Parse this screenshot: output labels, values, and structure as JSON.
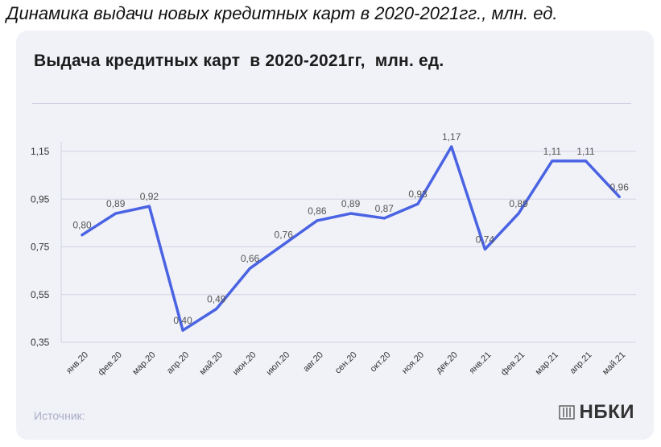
{
  "caption": "Динамика выдачи новых кредитных карт в 2020-2021гг., млн. ед.",
  "card": {
    "source_label": "Источник:",
    "logo_text": "НБКИ"
  },
  "colors": {
    "line": "#4a63e3",
    "card_bg": "#f1f2f8",
    "grid": "#cfd2e0",
    "label": "#555555"
  },
  "chart_data": {
    "type": "line",
    "title": "Выдача кредитных карт  в 2020-2021гг,  млн. ед.",
    "xlabel": "",
    "ylabel": "",
    "categories": [
      "янв.20",
      "фев.20",
      "мар.20",
      "апр.20",
      "май.20",
      "июн.20",
      "июл.20",
      "авг.20",
      "сен.20",
      "окт.20",
      "ноя.20",
      "дек.20",
      "янв.21",
      "фев.21",
      "мар.21",
      "апр.21",
      "май.21"
    ],
    "values": [
      0.8,
      0.89,
      0.92,
      0.4,
      0.49,
      0.66,
      0.76,
      0.86,
      0.89,
      0.87,
      0.93,
      1.17,
      0.74,
      0.89,
      1.11,
      1.11,
      0.96
    ],
    "value_labels": [
      "0,80",
      "0,89",
      "0,92",
      "0,40",
      "0,49",
      "0,66",
      "0,76",
      "0,86",
      "0,89",
      "0,87",
      "0,93",
      "1,17",
      "0,74",
      "0,89",
      "1,11",
      "1,11",
      "0,96"
    ],
    "yticks": [
      0.35,
      0.55,
      0.75,
      0.95,
      1.15
    ],
    "ytick_labels": [
      "0,35",
      "0,55",
      "0,75",
      "0,95",
      "1,15"
    ],
    "ylim": [
      0.35,
      1.15
    ],
    "grid": true,
    "legend": "none"
  }
}
